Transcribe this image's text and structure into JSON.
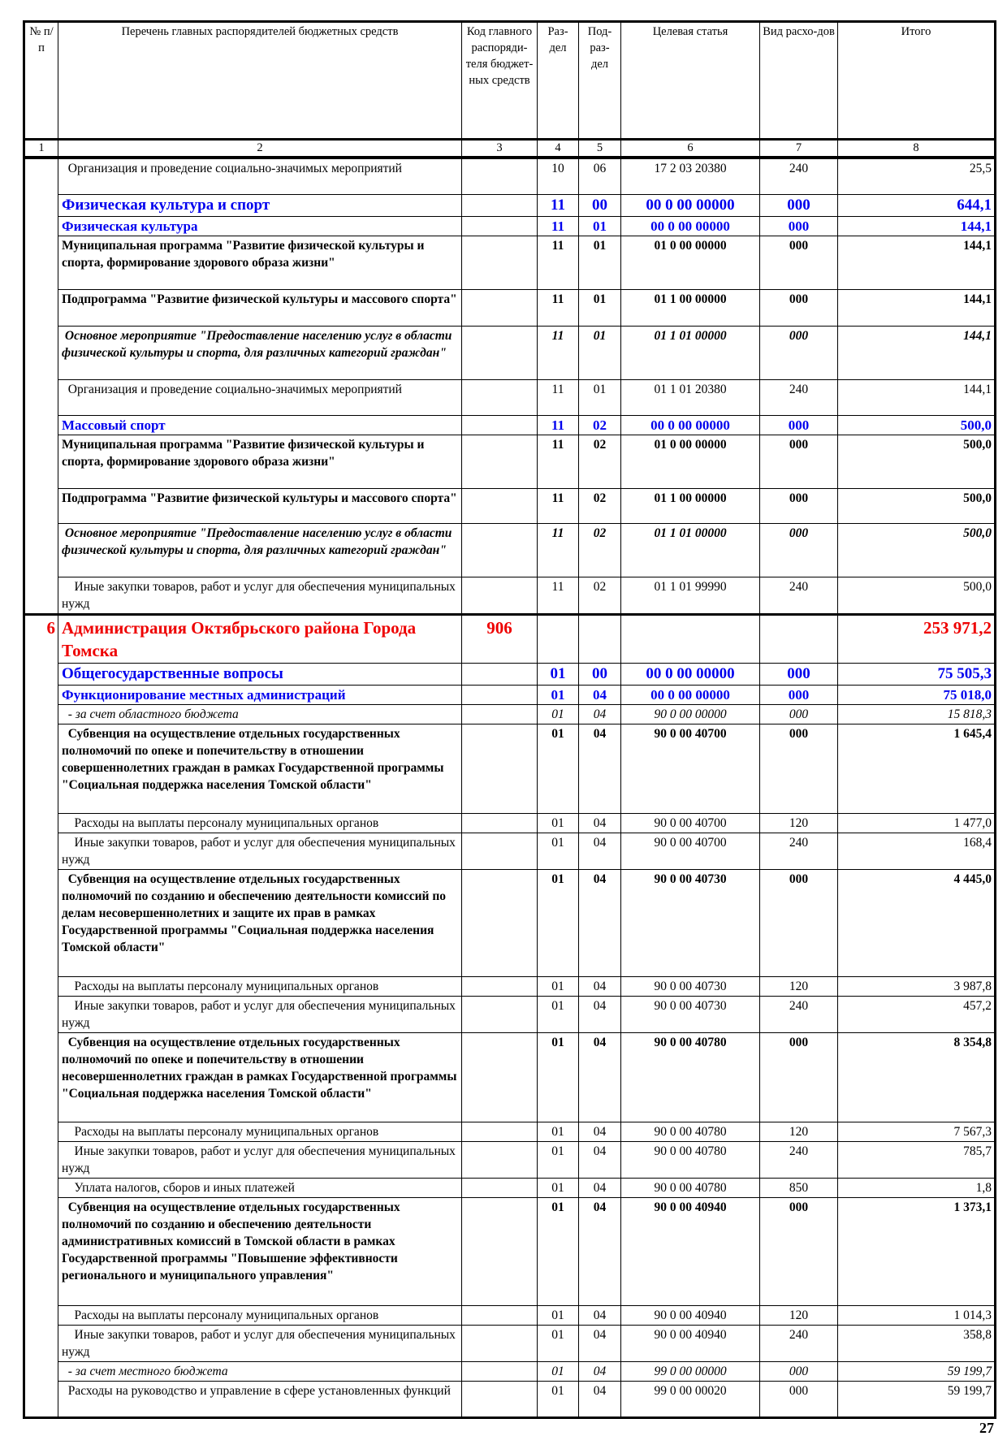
{
  "header": {
    "columns": [
      "№ п/п",
      "Перечень главных распорядителей бюджетных средств",
      "Код главного распоряди-теля бюджет-ных средств",
      "Раз-дел",
      "Под-раз-дел",
      "Целевая статья",
      "Вид расхо-дов",
      "Итого"
    ],
    "numbers": [
      "1",
      "2",
      "3",
      "4",
      "5",
      "6",
      "7",
      "8"
    ]
  },
  "rows": [
    {
      "style": "n",
      "no": "",
      "name": "  Организация и проведение социально-значимых мероприятий",
      "code": "",
      "razdel": "10",
      "podrazdel": "06",
      "article": "17 2 03 20380",
      "vid": "240",
      "total": "25,5"
    },
    {
      "style": "h1",
      "no": "",
      "name": "Физическая культура и спорт",
      "code": "",
      "razdel": "11",
      "podrazdel": "00",
      "article": "00 0 00 00000",
      "vid": "000",
      "total": "644,1"
    },
    {
      "style": "h2",
      "no": "",
      "name": "Физическая культура",
      "code": "",
      "razdel": "11",
      "podrazdel": "01",
      "article": "00 0 00 00000",
      "vid": "000",
      "total": "144,1"
    },
    {
      "style": "b",
      "no": "",
      "name": "Муниципальная программа \"Развитие физической культуры и спорта, формирование здорового образа жизни\"",
      "code": "",
      "razdel": "11",
      "podrazdel": "01",
      "article": "01 0 00 00000",
      "vid": "000",
      "total": "144,1"
    },
    {
      "style": "b",
      "no": "",
      "name": "Подпрограмма \"Развитие физической культуры и массового спорта\"",
      "code": "",
      "razdel": "11",
      "podrazdel": "01",
      "article": "01 1 00 00000",
      "vid": "000",
      "total": "144,1"
    },
    {
      "style": "i",
      "no": "",
      "name": " Основное мероприятие \"Предоставление населению услуг в области физической культуры и спорта, для различных категорий граждан\"",
      "code": "",
      "razdel": "11",
      "podrazdel": "01",
      "article": "01 1 01 00000",
      "vid": "000",
      "total": "144,1"
    },
    {
      "style": "n",
      "no": "",
      "name": "  Организация и проведение социально-значимых мероприятий",
      "code": "",
      "razdel": "11",
      "podrazdel": "01",
      "article": "01 1 01 20380",
      "vid": "240",
      "total": "144,1"
    },
    {
      "style": "h2",
      "no": "",
      "name": "Массовый спорт",
      "code": "",
      "razdel": "11",
      "podrazdel": "02",
      "article": "00 0 00 00000",
      "vid": "000",
      "total": "500,0"
    },
    {
      "style": "b",
      "no": "",
      "name": "Муниципальная программа \"Развитие физической культуры и спорта, формирование здорового образа жизни\"",
      "code": "",
      "razdel": "11",
      "podrazdel": "02",
      "article": "01 0 00 00000",
      "vid": "000",
      "total": "500,0"
    },
    {
      "style": "b",
      "no": "",
      "name": "Подпрограмма \"Развитие физической культуры и массового спорта\"",
      "code": "",
      "razdel": "11",
      "podrazdel": "02",
      "article": "01 1 00 00000",
      "vid": "000",
      "total": "500,0"
    },
    {
      "style": "i",
      "no": "",
      "name": " Основное мероприятие \"Предоставление населению услуг в области физической культуры и спорта, для различных категорий граждан\"",
      "code": "",
      "razdel": "11",
      "podrazdel": "02",
      "article": "01 1 01 00000",
      "vid": "000",
      "total": "500,0"
    },
    {
      "style": "n",
      "no": "",
      "name": "    Иные закупки товаров, работ и услуг для обеспечения муниципальных нужд",
      "code": "",
      "razdel": "11",
      "podrazdel": "02",
      "article": "01 1 01 99990",
      "vid": "240",
      "total": "500,0"
    },
    {
      "style": "red",
      "no": "6",
      "name": "Администрация Октябрьского района Города Томска",
      "code": "906",
      "razdel": "",
      "podrazdel": "",
      "article": "",
      "vid": "",
      "total": "253 971,2"
    },
    {
      "style": "h1",
      "no": "",
      "name": "Общегосударственные вопросы",
      "code": "",
      "razdel": "01",
      "podrazdel": "00",
      "article": "00 0 00 00000",
      "vid": "000",
      "total": "75 505,3"
    },
    {
      "style": "h2",
      "no": "",
      "name": "Функционирование местных администраций",
      "code": "",
      "razdel": "01",
      "podrazdel": "04",
      "article": "00 0 00 00000",
      "vid": "000",
      "total": "75 018,0"
    },
    {
      "style": "it",
      "no": "",
      "name": "  - за счет областного бюджета",
      "code": "",
      "razdel": "01",
      "podrazdel": "04",
      "article": "90 0 00 00000",
      "vid": "000",
      "total": "15 818,3"
    },
    {
      "style": "b",
      "no": "",
      "name": "  Субвенция на осуществление отдельных государственных полномочий по опеке и попечительству в отношении совершеннолетних граждан в рамках Государственной программы \"Социальная поддержка населения Томской области\"",
      "code": "",
      "razdel": "01",
      "podrazdel": "04",
      "article": "90 0 00 40700",
      "vid": "000",
      "total": "1 645,4"
    },
    {
      "style": "n",
      "no": "",
      "name": "    Расходы на выплаты персоналу муниципальных органов",
      "code": "",
      "razdel": "01",
      "podrazdel": "04",
      "article": "90 0 00 40700",
      "vid": "120",
      "total": "1 477,0"
    },
    {
      "style": "n",
      "no": "",
      "name": "    Иные закупки товаров, работ и услуг для обеспечения муниципальных нужд",
      "code": "",
      "razdel": "01",
      "podrazdel": "04",
      "article": "90 0 00 40700",
      "vid": "240",
      "total": "168,4"
    },
    {
      "style": "b",
      "no": "",
      "name": "  Субвенция на осуществление отдельных государственных полномочий по созданию и обеспечению деятельности комиссий по делам несовершеннолетних и защите их прав в рамках Государственной программы \"Социальная поддержка населения Томской области\"",
      "code": "",
      "razdel": "01",
      "podrazdel": "04",
      "article": "90 0 00 40730",
      "vid": "000",
      "total": "4 445,0"
    },
    {
      "style": "n",
      "no": "",
      "name": "    Расходы на выплаты персоналу муниципальных органов",
      "code": "",
      "razdel": "01",
      "podrazdel": "04",
      "article": "90 0 00 40730",
      "vid": "120",
      "total": "3 987,8"
    },
    {
      "style": "n",
      "no": "",
      "name": "    Иные закупки товаров, работ и услуг для обеспечения муниципальных нужд",
      "code": "",
      "razdel": "01",
      "podrazdel": "04",
      "article": "90 0 00 40730",
      "vid": "240",
      "total": "457,2"
    },
    {
      "style": "b",
      "no": "",
      "name": "  Субвенция на осуществление отдельных государственных полномочий по опеке и попечительству в отношении несовершеннолетних граждан в рамках Государственной программы \"Социальная поддержка населения Томской области\"",
      "code": "",
      "razdel": "01",
      "podrazdel": "04",
      "article": "90 0 00 40780",
      "vid": "000",
      "total": "8 354,8"
    },
    {
      "style": "n",
      "no": "",
      "name": "    Расходы на выплаты персоналу муниципальных органов",
      "code": "",
      "razdel": "01",
      "podrazdel": "04",
      "article": "90 0 00 40780",
      "vid": "120",
      "total": "7 567,3"
    },
    {
      "style": "n",
      "no": "",
      "name": "    Иные закупки товаров, работ и услуг для обеспечения муниципальных нужд",
      "code": "",
      "razdel": "01",
      "podrazdel": "04",
      "article": "90 0 00 40780",
      "vid": "240",
      "total": "785,7"
    },
    {
      "style": "n",
      "no": "",
      "name": "    Уплата налогов, сборов и иных платежей",
      "code": "",
      "razdel": "01",
      "podrazdel": "04",
      "article": "90 0 00 40780",
      "vid": "850",
      "total": "1,8"
    },
    {
      "style": "b",
      "no": "",
      "name": "  Субвенция на осуществление отдельных государственных полномочий по созданию и обеспечению деятельности административных комиссий в Томской области в рамках Государственной программы \"Повышение эффективности регионального и муниципального управления\"",
      "code": "",
      "razdel": "01",
      "podrazdel": "04",
      "article": "90 0 00 40940",
      "vid": "000",
      "total": "1 373,1"
    },
    {
      "style": "n",
      "no": "",
      "name": "    Расходы на выплаты персоналу муниципальных органов",
      "code": "",
      "razdel": "01",
      "podrazdel": "04",
      "article": "90 0 00 40940",
      "vid": "120",
      "total": "1 014,3"
    },
    {
      "style": "n",
      "no": "",
      "name": "    Иные закупки товаров, работ и услуг для обеспечения муниципальных нужд",
      "code": "",
      "razdel": "01",
      "podrazdel": "04",
      "article": "90 0 00 40940",
      "vid": "240",
      "total": "358,8"
    },
    {
      "style": "it",
      "no": "",
      "name": "  - за счет местного бюджета",
      "code": "",
      "razdel": "01",
      "podrazdel": "04",
      "article": "99 0 00 00000",
      "vid": "000",
      "total": "59 199,7"
    },
    {
      "style": "n",
      "no": "",
      "name": "  Расходы на руководство и управление в сфере установленных функций",
      "code": "",
      "razdel": "01",
      "podrazdel": "04",
      "article": "99 0 00 00020",
      "vid": "000",
      "total": "59 199,7"
    }
  ],
  "page_number": "27",
  "colors": {
    "section_heading": "#0000ee",
    "organization_heading": "#ee0000"
  }
}
